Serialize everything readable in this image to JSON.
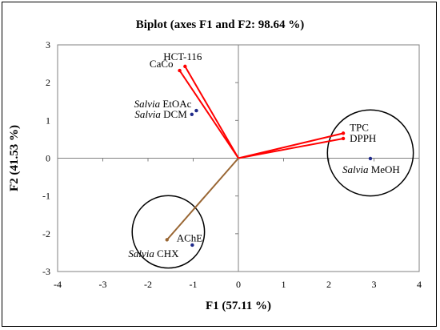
{
  "chart_data": {
    "type": "scatter",
    "title": "Biplot (axes F1 and F2: 98.64 %)",
    "xlabel": "F1 (57.11 %)",
    "ylabel": "F2 (41.53 %)",
    "xlim": [
      -4,
      4
    ],
    "ylim": [
      -3,
      3
    ],
    "xticks": [
      "-4",
      "-3",
      "-2",
      "-1",
      "0",
      "1",
      "2",
      "3",
      "4"
    ],
    "yticks": [
      "3",
      "2",
      "1",
      "0",
      "-1",
      "-2",
      "-3"
    ],
    "grid": false,
    "variables": [
      {
        "name": "HCT-116",
        "x": -1.18,
        "y": 2.43,
        "color": "#ff0000"
      },
      {
        "name": "CaCo",
        "x": -1.3,
        "y": 2.32,
        "color": "#ff0000"
      },
      {
        "name": "TPC",
        "x": 2.32,
        "y": 0.66,
        "color": "#ff0000"
      },
      {
        "name": "DPPH",
        "x": 2.32,
        "y": 0.52,
        "color": "#ff0000"
      },
      {
        "name": "AChE",
        "x": -1.58,
        "y": -2.16,
        "color": "#996633"
      }
    ],
    "observations": [
      {
        "italic": "Salvia",
        "name": "EtOAc",
        "x": -0.93,
        "y": 1.26,
        "color": "#1f2a8a"
      },
      {
        "italic": "Salvia",
        "name": "DCM",
        "x": -1.03,
        "y": 1.16,
        "color": "#1f2a8a"
      },
      {
        "italic": "Salvia",
        "name": "MeOH",
        "x": 2.92,
        "y": -0.01,
        "color": "#1f2a8a"
      },
      {
        "italic": "Salvia",
        "name": "CHX",
        "x": -1.02,
        "y": -2.3,
        "color": "#1f2a8a"
      }
    ],
    "circles": [
      {
        "cx": 2.92,
        "cy": 0.14,
        "r": 0.95
      },
      {
        "cx": -1.55,
        "cy": -1.95,
        "r": 0.8
      }
    ]
  }
}
